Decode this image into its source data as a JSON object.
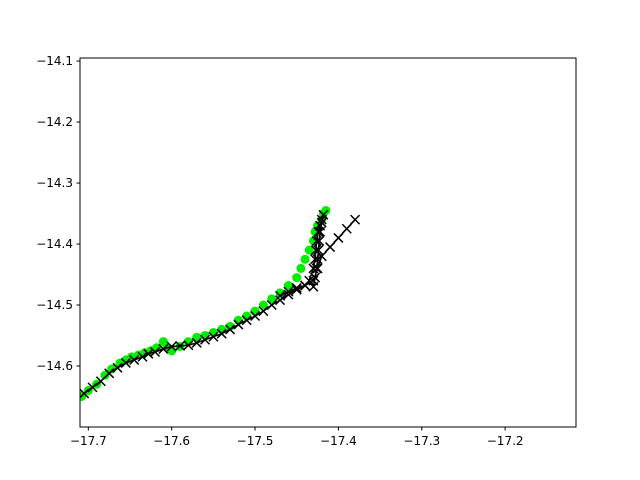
{
  "chart_data": {
    "type": "scatter",
    "title": "",
    "xlabel": "",
    "ylabel": "",
    "xlim": [
      -17.71,
      -17.115
    ],
    "ylim": [
      -14.7,
      -14.095
    ],
    "grid": false,
    "xticks": [
      -17.7,
      -17.6,
      -17.5,
      -17.4,
      -17.3,
      -17.2
    ],
    "yticks": [
      -14.6,
      -14.5,
      -14.4,
      -14.3,
      -14.2,
      -14.1
    ],
    "xtick_labels": [
      "−17.7",
      "−17.6",
      "−17.5",
      "−17.4",
      "−17.3",
      "−17.2"
    ],
    "ytick_labels": [
      "−14.6",
      "−14.5",
      "−14.4",
      "−14.3",
      "−14.2",
      "−14.1"
    ],
    "colors": {
      "green": "#00ee00",
      "black": "#000000"
    },
    "series": [
      {
        "style": "markers",
        "marker": "circle",
        "color": "#00ee00",
        "x": [
          -17.708,
          -17.7,
          -17.69,
          -17.68,
          -17.672,
          -17.662,
          -17.655,
          -17.648,
          -17.64,
          -17.632,
          -17.625,
          -17.618,
          -17.61,
          -17.605,
          -17.6,
          -17.59,
          -17.58,
          -17.57,
          -17.56,
          -17.55,
          -17.54,
          -17.53,
          -17.52,
          -17.51,
          -17.5,
          -17.49,
          -17.48,
          -17.47,
          -17.46,
          -17.45,
          -17.445,
          -17.44,
          -17.435,
          -17.43,
          -17.428,
          -17.425,
          -17.42,
          -17.418,
          -17.415
        ],
        "y": [
          -14.65,
          -14.64,
          -14.63,
          -14.615,
          -14.605,
          -14.595,
          -14.59,
          -14.585,
          -14.582,
          -14.578,
          -14.575,
          -14.57,
          -14.56,
          -14.57,
          -14.575,
          -14.568,
          -14.56,
          -14.553,
          -14.55,
          -14.545,
          -14.54,
          -14.535,
          -14.525,
          -14.518,
          -14.51,
          -14.5,
          -14.49,
          -14.48,
          -14.468,
          -14.455,
          -14.44,
          -14.425,
          -14.41,
          -14.395,
          -14.38,
          -14.37,
          -14.36,
          -14.35,
          -14.345
        ]
      },
      {
        "style": "line-markers",
        "marker": "x",
        "color": "#000000",
        "x": [
          -17.705,
          -17.695,
          -17.685,
          -17.675,
          -17.665,
          -17.655,
          -17.645,
          -17.635,
          -17.628,
          -17.62,
          -17.61,
          -17.6,
          -17.59,
          -17.58,
          -17.57,
          -17.56,
          -17.55,
          -17.54,
          -17.53,
          -17.52,
          -17.51,
          -17.5,
          -17.49,
          -17.48,
          -17.47,
          -17.46,
          -17.45,
          -17.44,
          -17.43,
          -17.425,
          -17.42,
          -17.41,
          -17.4,
          -17.39,
          -17.38
        ],
        "y": [
          -14.645,
          -14.635,
          -14.625,
          -14.612,
          -14.603,
          -14.595,
          -14.59,
          -14.585,
          -14.58,
          -14.577,
          -14.572,
          -14.568,
          -14.567,
          -14.566,
          -14.562,
          -14.557,
          -14.552,
          -14.547,
          -14.54,
          -14.532,
          -14.525,
          -14.518,
          -14.51,
          -14.5,
          -14.492,
          -14.483,
          -14.475,
          -14.468,
          -14.46,
          -14.44,
          -14.42,
          -14.405,
          -14.39,
          -14.375,
          -14.36
        ]
      },
      {
        "style": "line-markers",
        "marker": "x",
        "color": "#000000",
        "x": [
          -17.47,
          -17.46,
          -17.45,
          -17.44,
          -17.435,
          -17.43,
          -17.428,
          -17.427,
          -17.426,
          -17.424,
          -17.422,
          -17.42,
          -17.418
        ],
        "y": [
          -14.485,
          -14.478,
          -14.472,
          -14.468,
          -14.46,
          -14.44,
          -14.425,
          -14.41,
          -14.395,
          -14.38,
          -14.37,
          -14.36,
          -14.352
        ]
      },
      {
        "style": "line-markers",
        "marker": "x",
        "color": "#000000",
        "x": [
          -17.43,
          -17.428,
          -17.426,
          -17.425,
          -17.424,
          -17.423,
          -17.422,
          -17.42
        ],
        "y": [
          -14.47,
          -14.455,
          -14.44,
          -14.425,
          -14.41,
          -14.395,
          -14.38,
          -14.365
        ]
      }
    ]
  }
}
